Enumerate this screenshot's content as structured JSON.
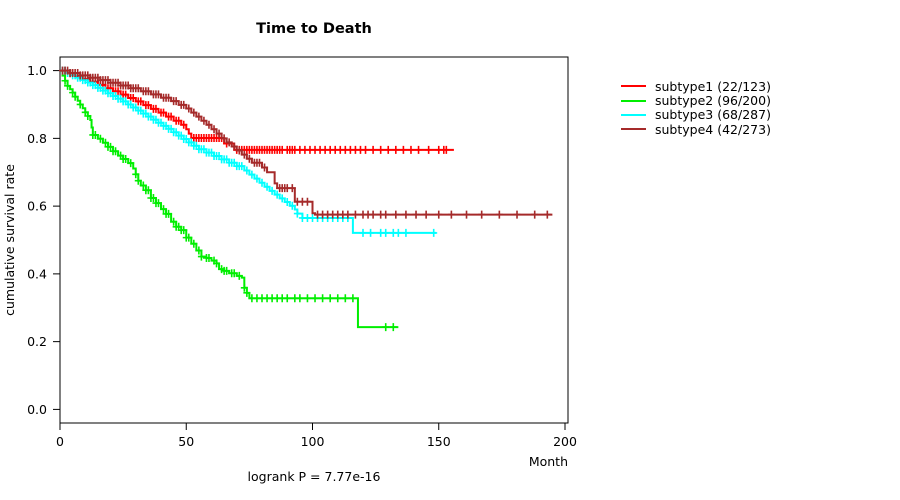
{
  "title": "Time to Death",
  "footer": {
    "text": "logrank P = 7.77e-16"
  },
  "axes": {
    "x": {
      "label": "Month",
      "ticks": [
        0,
        50,
        100,
        150,
        200
      ]
    },
    "y": {
      "label": "cumulative survival rate",
      "ticks": [
        "0.0",
        "0.2",
        "0.4",
        "0.6",
        "0.8",
        "1.0"
      ]
    }
  },
  "legend": {
    "items": [
      {
        "label": "subtype1 (22/123)",
        "color": "#ff0000"
      },
      {
        "label": "subtype2 (96/200)",
        "color": "#00ee00"
      },
      {
        "label": "subtype3 (68/287)",
        "color": "#00ffff"
      },
      {
        "label": "subtype4 (42/273)",
        "color": "#a52a2a"
      }
    ]
  },
  "chart_data": {
    "type": "line",
    "variant": "kaplan-meier-step-curves",
    "title": "Time to Death",
    "xlabel": "Month",
    "ylabel": "cumulative survival rate",
    "xlim": [
      0,
      201
    ],
    "ylim": [
      0,
      1
    ],
    "x_ticks": [
      0,
      50,
      100,
      150,
      200
    ],
    "y_ticks": [
      0.0,
      0.2,
      0.4,
      0.6,
      0.8,
      1.0
    ],
    "annotation": "logrank P = 7.77e-16",
    "legend_position": "right-outside",
    "grid": false,
    "series": [
      {
        "name": "subtype1 (22/123)",
        "color": "#ff0000",
        "steps": [
          [
            0,
            1.0
          ],
          [
            3,
            0.992
          ],
          [
            6,
            0.984
          ],
          [
            9,
            0.975
          ],
          [
            12,
            0.967
          ],
          [
            15,
            0.958
          ],
          [
            18,
            0.948
          ],
          [
            21,
            0.939
          ],
          [
            24,
            0.929
          ],
          [
            27,
            0.919
          ],
          [
            30,
            0.909
          ],
          [
            33,
            0.898
          ],
          [
            36,
            0.887
          ],
          [
            39,
            0.876
          ],
          [
            42,
            0.864
          ],
          [
            45,
            0.852
          ],
          [
            48,
            0.84
          ],
          [
            50,
            0.827
          ],
          [
            51,
            0.814
          ],
          [
            52,
            0.801
          ],
          [
            65,
            0.785
          ],
          [
            69,
            0.766
          ],
          [
            156,
            0.766
          ]
        ],
        "censor_times": [
          1,
          2,
          4,
          5,
          7,
          8,
          10,
          11,
          13,
          14,
          16,
          17,
          19,
          20,
          22,
          23,
          25,
          26,
          28,
          29,
          31,
          32,
          34,
          35,
          37,
          38,
          40,
          41,
          43,
          44,
          46,
          47,
          49,
          53,
          54,
          55,
          56,
          57,
          58,
          59,
          60,
          61,
          62,
          63,
          64,
          66,
          70,
          71,
          72,
          73,
          74,
          75,
          76,
          77,
          78,
          79,
          80,
          81,
          82,
          83,
          84,
          85,
          86,
          87,
          88,
          90,
          91,
          92,
          93,
          95,
          97,
          99,
          101,
          103,
          105,
          107,
          109,
          111,
          113,
          115,
          117,
          119,
          121,
          124,
          127,
          130,
          133,
          136,
          139,
          142,
          146,
          150,
          152,
          153
        ]
      },
      {
        "name": "subtype2 (96/200)",
        "color": "#00ee00",
        "steps": [
          [
            0,
            1.0
          ],
          [
            1,
            0.985
          ],
          [
            2,
            0.97
          ],
          [
            3,
            0.955
          ],
          [
            4,
            0.945
          ],
          [
            5,
            0.935
          ],
          [
            6,
            0.923
          ],
          [
            7,
            0.911
          ],
          [
            8,
            0.9
          ],
          [
            9,
            0.889
          ],
          [
            10,
            0.877
          ],
          [
            11,
            0.866
          ],
          [
            12,
            0.854
          ],
          [
            12.5,
            0.832
          ],
          [
            13,
            0.81
          ],
          [
            15,
            0.799
          ],
          [
            17,
            0.787
          ],
          [
            19,
            0.775
          ],
          [
            21,
            0.762
          ],
          [
            23,
            0.749
          ],
          [
            25,
            0.739
          ],
          [
            27,
            0.727
          ],
          [
            29,
            0.711
          ],
          [
            30,
            0.694
          ],
          [
            31,
            0.675
          ],
          [
            32,
            0.661
          ],
          [
            34,
            0.647
          ],
          [
            36,
            0.624
          ],
          [
            38,
            0.609
          ],
          [
            40,
            0.591
          ],
          [
            42,
            0.577
          ],
          [
            44,
            0.554
          ],
          [
            46,
            0.539
          ],
          [
            48,
            0.529
          ],
          [
            50,
            0.507
          ],
          [
            52,
            0.489
          ],
          [
            54,
            0.469
          ],
          [
            56,
            0.451
          ],
          [
            58,
            0.447
          ],
          [
            60,
            0.439
          ],
          [
            62,
            0.431
          ],
          [
            63,
            0.414
          ],
          [
            65,
            0.409
          ],
          [
            67,
            0.402
          ],
          [
            70,
            0.394
          ],
          [
            72,
            0.389
          ],
          [
            73,
            0.359
          ],
          [
            74,
            0.344
          ],
          [
            75,
            0.328
          ],
          [
            118,
            0.243
          ],
          [
            134,
            0.243
          ]
        ],
        "censor_times": [
          2,
          3,
          5,
          6,
          8,
          10,
          11,
          13,
          14,
          16,
          18,
          19,
          20,
          21,
          22,
          24,
          25,
          26,
          28,
          30,
          31,
          33,
          34,
          35,
          36,
          37,
          38,
          39,
          41,
          42,
          43,
          45,
          46,
          47,
          48,
          49,
          50,
          51,
          53,
          55,
          56,
          58,
          59,
          61,
          62,
          64,
          65,
          66,
          68,
          69,
          71,
          73,
          74,
          76,
          78,
          80,
          82,
          84,
          86,
          88,
          90,
          93,
          95,
          98,
          101,
          104,
          107,
          110,
          113,
          116,
          129,
          132
        ]
      },
      {
        "name": "subtype3 (68/287)",
        "color": "#00ffff",
        "steps": [
          [
            0,
            1.0
          ],
          [
            3,
            0.993
          ],
          [
            5,
            0.986
          ],
          [
            7,
            0.979
          ],
          [
            9,
            0.972
          ],
          [
            11,
            0.965
          ],
          [
            13,
            0.957
          ],
          [
            15,
            0.949
          ],
          [
            17,
            0.941
          ],
          [
            19,
            0.933
          ],
          [
            21,
            0.925
          ],
          [
            23,
            0.917
          ],
          [
            25,
            0.909
          ],
          [
            27,
            0.9
          ],
          [
            29,
            0.891
          ],
          [
            31,
            0.882
          ],
          [
            33,
            0.873
          ],
          [
            35,
            0.864
          ],
          [
            37,
            0.855
          ],
          [
            39,
            0.846
          ],
          [
            41,
            0.837
          ],
          [
            43,
            0.828
          ],
          [
            45,
            0.818
          ],
          [
            47,
            0.808
          ],
          [
            49,
            0.798
          ],
          [
            51,
            0.788
          ],
          [
            53,
            0.778
          ],
          [
            55,
            0.768
          ],
          [
            58,
            0.758
          ],
          [
            61,
            0.748
          ],
          [
            64,
            0.738
          ],
          [
            67,
            0.728
          ],
          [
            70,
            0.718
          ],
          [
            73,
            0.705
          ],
          [
            75,
            0.693
          ],
          [
            77,
            0.681
          ],
          [
            79,
            0.669
          ],
          [
            81,
            0.657
          ],
          [
            83,
            0.645
          ],
          [
            85,
            0.634
          ],
          [
            87,
            0.623
          ],
          [
            89,
            0.612
          ],
          [
            91,
            0.601
          ],
          [
            93,
            0.59
          ],
          [
            94,
            0.578
          ],
          [
            96,
            0.565
          ],
          [
            116,
            0.521
          ],
          [
            149,
            0.521
          ]
        ],
        "censor_times": [
          1,
          2,
          3,
          4,
          5,
          6,
          7,
          8,
          9,
          10,
          11,
          12,
          13,
          14,
          15,
          16,
          17,
          18,
          19,
          20,
          21,
          22,
          23,
          24,
          25,
          26,
          27,
          28,
          29,
          30,
          31,
          32,
          33,
          34,
          35,
          36,
          37,
          38,
          39,
          40,
          41,
          42,
          43,
          44,
          45,
          46,
          47,
          48,
          49,
          50,
          51,
          52,
          53,
          54,
          55,
          56,
          57,
          58,
          59,
          60,
          61,
          62,
          63,
          64,
          65,
          66,
          67,
          68,
          69,
          70,
          71,
          72,
          74,
          76,
          78,
          80,
          82,
          84,
          86,
          88,
          90,
          92,
          94,
          96,
          98,
          100,
          102,
          104,
          106,
          108,
          110,
          112,
          114,
          120,
          123,
          127,
          129,
          132,
          134,
          137,
          148
        ]
      },
      {
        "name": "subtype4 (42/273)",
        "color": "#a52a2a",
        "steps": [
          [
            0,
            1.0
          ],
          [
            4,
            0.993
          ],
          [
            8,
            0.986
          ],
          [
            12,
            0.979
          ],
          [
            16,
            0.972
          ],
          [
            20,
            0.964
          ],
          [
            24,
            0.956
          ],
          [
            28,
            0.948
          ],
          [
            32,
            0.939
          ],
          [
            36,
            0.93
          ],
          [
            40,
            0.92
          ],
          [
            44,
            0.91
          ],
          [
            47,
            0.899
          ],
          [
            50,
            0.888
          ],
          [
            52,
            0.876
          ],
          [
            54,
            0.864
          ],
          [
            56,
            0.852
          ],
          [
            58,
            0.84
          ],
          [
            60,
            0.827
          ],
          [
            62,
            0.814
          ],
          [
            64,
            0.8
          ],
          [
            66,
            0.788
          ],
          [
            68,
            0.776
          ],
          [
            70,
            0.764
          ],
          [
            72,
            0.752
          ],
          [
            74,
            0.74
          ],
          [
            76,
            0.728
          ],
          [
            80,
            0.714
          ],
          [
            82,
            0.7
          ],
          [
            85,
            0.667
          ],
          [
            86,
            0.653
          ],
          [
            93,
            0.613
          ],
          [
            100,
            0.579
          ],
          [
            101,
            0.575
          ],
          [
            195,
            0.575
          ]
        ],
        "censor_times": [
          1,
          2,
          3,
          4,
          5,
          6,
          7,
          8,
          9,
          10,
          11,
          12,
          13,
          14,
          15,
          16,
          17,
          18,
          19,
          20,
          21,
          22,
          23,
          24,
          25,
          26,
          27,
          28,
          29,
          30,
          31,
          33,
          34,
          35,
          37,
          38,
          39,
          41,
          42,
          43,
          45,
          46,
          48,
          49,
          51,
          53,
          55,
          57,
          59,
          61,
          63,
          65,
          67,
          69,
          71,
          73,
          75,
          77,
          78,
          79,
          81,
          87,
          88,
          89,
          90,
          92,
          94,
          96,
          98,
          102,
          104,
          106,
          108,
          110,
          112,
          114,
          117,
          120,
          122,
          124,
          127,
          129,
          133,
          137,
          141,
          145,
          150,
          155,
          161,
          167,
          174,
          181,
          188,
          193
        ]
      }
    ]
  }
}
